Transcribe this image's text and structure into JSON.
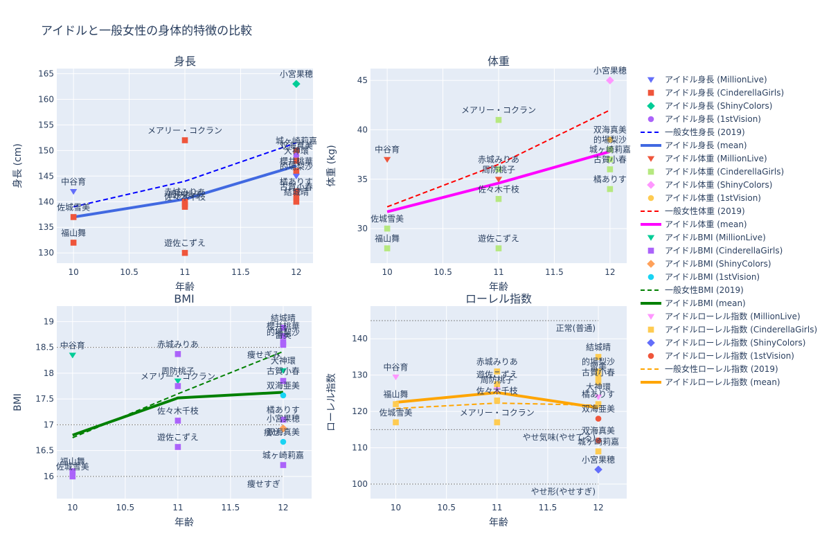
{
  "title": "アイドルと一般女性の身体的特徴の比較",
  "subplot_titles": [
    "身長",
    "体重",
    "BMI",
    "ローレル指数"
  ],
  "axis_titles": {
    "x": "年齢",
    "y": [
      "身長 (cm)",
      "体重 (kg)",
      "BMI",
      "ローレル指数"
    ]
  },
  "legend": [
    {
      "label": "アイドル身長 (MillionLive)",
      "kind": "marker",
      "symbol": "triangle-down",
      "color": "#636efa"
    },
    {
      "label": "アイドル身長 (CinderellaGirls)",
      "kind": "marker",
      "symbol": "square",
      "color": "#ef553b"
    },
    {
      "label": "アイドル身長 (ShinyColors)",
      "kind": "marker",
      "symbol": "diamond",
      "color": "#00cc96"
    },
    {
      "label": "アイドル身長 (1stVision)",
      "kind": "marker",
      "symbol": "circle",
      "color": "#ab63fa"
    },
    {
      "label": "一般女性身長 (2019)",
      "kind": "dash",
      "color": "#0000ff"
    },
    {
      "label": "アイドル身長 (mean)",
      "kind": "line",
      "color": "#4169e1"
    },
    {
      "label": "アイドル体重 (MillionLive)",
      "kind": "marker",
      "symbol": "triangle-down",
      "color": "#ef553b"
    },
    {
      "label": "アイドル体重 (CinderellaGirls)",
      "kind": "marker",
      "symbol": "square",
      "color": "#b6e880"
    },
    {
      "label": "アイドル体重 (ShinyColors)",
      "kind": "marker",
      "symbol": "diamond",
      "color": "#ff97ff"
    },
    {
      "label": "アイドル体重 (1stVision)",
      "kind": "marker",
      "symbol": "circle",
      "color": "#fecb52"
    },
    {
      "label": "一般女性体重 (2019)",
      "kind": "dash",
      "color": "#ff0000"
    },
    {
      "label": "アイドル体重 (mean)",
      "kind": "line",
      "color": "#ff00ff"
    },
    {
      "label": "アイドルBMI (MillionLive)",
      "kind": "marker",
      "symbol": "triangle-down",
      "color": "#00cc96"
    },
    {
      "label": "アイドルBMI (CinderellaGirls)",
      "kind": "marker",
      "symbol": "square",
      "color": "#ab63fa"
    },
    {
      "label": "アイドルBMI (ShinyColors)",
      "kind": "marker",
      "symbol": "diamond",
      "color": "#ffa15a"
    },
    {
      "label": "アイドルBMI (1stVision)",
      "kind": "marker",
      "symbol": "circle",
      "color": "#19d3f3"
    },
    {
      "label": "一般女性BMI (2019)",
      "kind": "dash",
      "color": "#008000"
    },
    {
      "label": "アイドルBMI (mean)",
      "kind": "line",
      "color": "#008000"
    },
    {
      "label": "アイドルローレル指数 (MillionLive)",
      "kind": "marker",
      "symbol": "triangle-down",
      "color": "#ff97ff"
    },
    {
      "label": "アイドルローレル指数 (CinderellaGirls)",
      "kind": "marker",
      "symbol": "square",
      "color": "#fecb52"
    },
    {
      "label": "アイドルローレル指数 (ShinyColors)",
      "kind": "marker",
      "symbol": "diamond",
      "color": "#636efa"
    },
    {
      "label": "アイドルローレル指数 (1stVision)",
      "kind": "marker",
      "symbol": "circle",
      "color": "#ef553b"
    },
    {
      "label": "一般女性ローレル指数 (2019)",
      "kind": "dash",
      "color": "#ffa500"
    },
    {
      "label": "アイドルローレル指数 (mean)",
      "kind": "line",
      "color": "#ffa500"
    }
  ],
  "chart_data": [
    {
      "type": "scatter",
      "title": "身長",
      "xlabel": "年齢",
      "ylabel": "身長 (cm)",
      "xlim": [
        9.85,
        12.15
      ],
      "ylim": [
        128,
        166
      ],
      "x_ticks": [
        10,
        10.5,
        11,
        11.5,
        12
      ],
      "y_ticks": [
        130,
        135,
        140,
        145,
        150,
        155,
        160,
        165
      ],
      "points": [
        {
          "x": 10,
          "y": 142,
          "group": "MillionLive",
          "symbol": "triangle-down",
          "color": "#636efa",
          "label": "中谷育"
        },
        {
          "x": 10,
          "y": 137,
          "group": "CinderellaGirls",
          "symbol": "square",
          "color": "#ef553b",
          "label": "佐城雪美"
        },
        {
          "x": 10,
          "y": 132,
          "group": "CinderellaGirls",
          "symbol": "square",
          "color": "#ef553b",
          "label": "福山舞"
        },
        {
          "x": 11,
          "y": 152,
          "group": "CinderellaGirls",
          "symbol": "square",
          "color": "#ef553b",
          "label": "メアリー・コクラン"
        },
        {
          "x": 11,
          "y": 140,
          "group": "CinderellaGirls",
          "symbol": "square",
          "color": "#ef553b",
          "label": "赤城みりあ"
        },
        {
          "x": 11,
          "y": 139.5,
          "group": "CinderellaGirls",
          "symbol": "square",
          "color": "#ef553b",
          "label": "周防桃子"
        },
        {
          "x": 11,
          "y": 139,
          "group": "CinderellaGirls",
          "symbol": "square",
          "color": "#ef553b",
          "label": "佐々木千枝"
        },
        {
          "x": 11,
          "y": 130,
          "group": "CinderellaGirls",
          "symbol": "square",
          "color": "#ef553b",
          "label": "遊佐こずえ"
        },
        {
          "x": 12,
          "y": 163,
          "group": "ShinyColors",
          "symbol": "diamond",
          "color": "#00cc96",
          "label": "小宮果穂"
        },
        {
          "x": 12,
          "y": 150,
          "group": "CinderellaGirls",
          "symbol": "square",
          "color": "#ef553b",
          "label": "城ヶ崎莉嘉"
        },
        {
          "x": 12,
          "y": 149,
          "group": "1stVision",
          "symbol": "circle",
          "color": "#ab63fa",
          "label": "双海真美"
        },
        {
          "x": 12,
          "y": 148,
          "group": "CinderellaGirls",
          "symbol": "square",
          "color": "#ef553b",
          "label": "大神環"
        },
        {
          "x": 12,
          "y": 146,
          "group": "CinderellaGirls",
          "symbol": "square",
          "color": "#ef553b",
          "label": "櫻井桃華"
        },
        {
          "x": 12,
          "y": 145,
          "group": "MillionLive",
          "symbol": "triangle-down",
          "color": "#636efa",
          "label": "的場梨沙"
        },
        {
          "x": 12,
          "y": 142,
          "group": "CinderellaGirls",
          "symbol": "square",
          "color": "#ef553b",
          "label": "橘ありす"
        },
        {
          "x": 12,
          "y": 141,
          "group": "CinderellaGirls",
          "symbol": "square",
          "color": "#ef553b",
          "label": "古賀小春"
        },
        {
          "x": 12,
          "y": 140,
          "group": "CinderellaGirls",
          "symbol": "square",
          "color": "#ef553b",
          "label": "結城晴"
        }
      ],
      "reference": {
        "name": "一般女性身長 (2019)",
        "x": [
          10,
          11,
          12
        ],
        "y": [
          139,
          144,
          151.5
        ]
      },
      "mean": {
        "name": "アイドル身長 (mean)",
        "x": [
          10,
          11,
          12
        ],
        "y": [
          137,
          140.5,
          147
        ]
      }
    },
    {
      "type": "scatter",
      "title": "体重",
      "xlabel": "年齢",
      "ylabel": "体重 (kg)",
      "xlim": [
        9.85,
        12.15
      ],
      "ylim": [
        26.5,
        46.2
      ],
      "x_ticks": [
        10,
        10.5,
        11,
        11.5,
        12
      ],
      "y_ticks": [
        30,
        35,
        40,
        45
      ],
      "points": [
        {
          "x": 10,
          "y": 37,
          "group": "MillionLive",
          "symbol": "triangle-down",
          "color": "#ef553b",
          "label": "中谷育"
        },
        {
          "x": 10,
          "y": 30,
          "group": "CinderellaGirls",
          "symbol": "square",
          "color": "#b6e880",
          "label": "佐城雪美"
        },
        {
          "x": 10,
          "y": 28,
          "group": "CinderellaGirls",
          "symbol": "square",
          "color": "#b6e880",
          "label": "福山舞"
        },
        {
          "x": 11,
          "y": 41,
          "group": "CinderellaGirls",
          "symbol": "square",
          "color": "#b6e880",
          "label": "メアリー・コクラン"
        },
        {
          "x": 11,
          "y": 36,
          "group": "CinderellaGirls",
          "symbol": "square",
          "color": "#b6e880",
          "label": "赤城みりあ"
        },
        {
          "x": 11,
          "y": 35,
          "group": "MillionLive",
          "symbol": "triangle-down",
          "color": "#ef553b",
          "label": "周防桃子"
        },
        {
          "x": 11,
          "y": 33,
          "group": "CinderellaGirls",
          "symbol": "square",
          "color": "#b6e880",
          "label": "佐々木千枝"
        },
        {
          "x": 11,
          "y": 28,
          "group": "CinderellaGirls",
          "symbol": "square",
          "color": "#b6e880",
          "label": "遊佐こずえ"
        },
        {
          "x": 12,
          "y": 45,
          "group": "ShinyColors",
          "symbol": "diamond",
          "color": "#ff97ff",
          "label": "小宮果穂"
        },
        {
          "x": 12,
          "y": 39,
          "group": "1stVision",
          "symbol": "circle",
          "color": "#fecb52",
          "label": "双海真美"
        },
        {
          "x": 12,
          "y": 38,
          "group": "CinderellaGirls",
          "symbol": "square",
          "color": "#b6e880",
          "label": "的場梨沙"
        },
        {
          "x": 12,
          "y": 37,
          "group": "CinderellaGirls",
          "symbol": "square",
          "color": "#b6e880",
          "label": "城ヶ崎莉嘉"
        },
        {
          "x": 12,
          "y": 36,
          "group": "CinderellaGirls",
          "symbol": "square",
          "color": "#b6e880",
          "label": "古賀小春"
        },
        {
          "x": 12,
          "y": 34,
          "group": "CinderellaGirls",
          "symbol": "square",
          "color": "#b6e880",
          "label": "橘ありす"
        }
      ],
      "reference": {
        "name": "一般女性体重 (2019)",
        "x": [
          10,
          11,
          12
        ],
        "y": [
          32.2,
          36.5,
          42
        ]
      },
      "mean": {
        "name": "アイドル体重 (mean)",
        "x": [
          10,
          11,
          12
        ],
        "y": [
          31.7,
          34.6,
          37.8
        ]
      }
    },
    {
      "type": "scatter",
      "title": "BMI",
      "xlabel": "年齢",
      "ylabel": "BMI",
      "xlim": [
        9.85,
        12.27
      ],
      "ylim": [
        15.57,
        19.3
      ],
      "x_ticks": [
        10,
        10.5,
        11,
        11.5,
        12
      ],
      "y_ticks": [
        16,
        16.5,
        17,
        17.5,
        18,
        18.5,
        19
      ],
      "points": [
        {
          "x": 10,
          "y": 18.35,
          "group": "MillionLive",
          "symbol": "triangle-down",
          "color": "#00cc96",
          "label": "中谷育"
        },
        {
          "x": 10,
          "y": 16.1,
          "group": "CinderellaGirls",
          "symbol": "square",
          "color": "#ab63fa",
          "label": "福山舞"
        },
        {
          "x": 10,
          "y": 16.0,
          "group": "CinderellaGirls",
          "symbol": "square",
          "color": "#ab63fa",
          "label": "佐城雪美"
        },
        {
          "x": 11,
          "y": 18.37,
          "group": "CinderellaGirls",
          "symbol": "square",
          "color": "#ab63fa",
          "label": "赤城みりあ"
        },
        {
          "x": 11,
          "y": 17.85,
          "group": "MillionLive",
          "symbol": "triangle-down",
          "color": "#00cc96",
          "label": "周防桃子"
        },
        {
          "x": 11,
          "y": 17.75,
          "group": "CinderellaGirls",
          "symbol": "square",
          "color": "#ab63fa",
          "label": "メアリー・コクラン"
        },
        {
          "x": 11,
          "y": 17.08,
          "group": "CinderellaGirls",
          "symbol": "square",
          "color": "#ab63fa",
          "label": "佐々木千枝"
        },
        {
          "x": 11,
          "y": 16.57,
          "group": "CinderellaGirls",
          "symbol": "square",
          "color": "#ab63fa",
          "label": "遊佐こずえ"
        },
        {
          "x": 12,
          "y": 18.88,
          "group": "CinderellaGirls",
          "symbol": "square",
          "color": "#ab63fa",
          "label": "結城晴"
        },
        {
          "x": 12,
          "y": 18.72,
          "group": "CinderellaGirls",
          "symbol": "square",
          "color": "#ab63fa",
          "label": "櫻井桃華"
        },
        {
          "x": 12,
          "y": 18.6,
          "group": "CinderellaGirls",
          "symbol": "square",
          "color": "#ab63fa",
          "label": "的場梨沙"
        },
        {
          "x": 12,
          "y": 18.55,
          "group": "CinderellaGirls",
          "symbol": "square",
          "color": "#ab63fa",
          "label": "留美"
        },
        {
          "x": 12,
          "y": 18.05,
          "group": "MillionLive",
          "symbol": "triangle-down",
          "color": "#00cc96",
          "label": "大神環"
        },
        {
          "x": 12,
          "y": 17.85,
          "group": "CinderellaGirls",
          "symbol": "square",
          "color": "#ab63fa",
          "label": "古賀小春"
        },
        {
          "x": 12,
          "y": 17.57,
          "group": "1stVision",
          "symbol": "circle",
          "color": "#19d3f3",
          "label": "双海亜美"
        },
        {
          "x": 12,
          "y": 17.1,
          "group": "CinderellaGirls",
          "symbol": "square",
          "color": "#ab63fa",
          "label": "橘ありす"
        },
        {
          "x": 12,
          "y": 16.93,
          "group": "ShinyColors",
          "symbol": "diamond",
          "color": "#ffa15a",
          "label": "小宮果穂"
        },
        {
          "x": 12,
          "y": 16.67,
          "group": "1stVision",
          "symbol": "circle",
          "color": "#19d3f3",
          "label": "双海真美"
        },
        {
          "x": 12,
          "y": 16.22,
          "group": "CinderellaGirls",
          "symbol": "square",
          "color": "#ab63fa",
          "label": "城ヶ崎莉嘉"
        }
      ],
      "thresholds": [
        {
          "y": 18.5,
          "label": "痩せぎみ"
        },
        {
          "y": 17.0,
          "label": "痩せ"
        },
        {
          "y": 16.0,
          "label": "痩せすぎ"
        }
      ],
      "reference": {
        "name": "一般女性BMI (2019)",
        "x": [
          10,
          11,
          12
        ],
        "y": [
          16.75,
          17.6,
          18.42
        ]
      },
      "mean": {
        "name": "アイドルBMI (mean)",
        "x": [
          10,
          11,
          12
        ],
        "y": [
          16.8,
          17.52,
          17.63
        ]
      }
    },
    {
      "type": "scatter",
      "title": "ローレル指数",
      "xlabel": "年齢",
      "ylabel": "ローレル指数",
      "xlim": [
        9.75,
        12.28
      ],
      "ylim": [
        96,
        149
      ],
      "x_ticks": [
        10,
        10.5,
        11,
        11.5,
        12
      ],
      "y_ticks": [
        100,
        110,
        120,
        130,
        140
      ],
      "points": [
        {
          "x": 10,
          "y": 129.5,
          "group": "MillionLive",
          "symbol": "triangle-down",
          "color": "#ff97ff",
          "label": "中谷育"
        },
        {
          "x": 10,
          "y": 122,
          "group": "CinderellaGirls",
          "symbol": "square",
          "color": "#fecb52",
          "label": "福山舞"
        },
        {
          "x": 10,
          "y": 117,
          "group": "CinderellaGirls",
          "symbol": "square",
          "color": "#fecb52",
          "label": "佐城雪美"
        },
        {
          "x": 11,
          "y": 131,
          "group": "CinderellaGirls",
          "symbol": "square",
          "color": "#fecb52",
          "label": "赤城みりあ"
        },
        {
          "x": 11,
          "y": 127.5,
          "group": "CinderellaGirls",
          "symbol": "square",
          "color": "#fecb52",
          "label": "遊佐こずえ"
        },
        {
          "x": 11,
          "y": 126,
          "group": "MillionLive",
          "symbol": "triangle-down",
          "color": "#ff97ff",
          "label": "周防桃子"
        },
        {
          "x": 11,
          "y": 123,
          "group": "CinderellaGirls",
          "symbol": "square",
          "color": "#fecb52",
          "label": "佐々木千枝"
        },
        {
          "x": 11,
          "y": 117,
          "group": "CinderellaGirls",
          "symbol": "square",
          "color": "#fecb52",
          "label": "メアリー・コクラン"
        },
        {
          "x": 12,
          "y": 135,
          "group": "CinderellaGirls",
          "symbol": "square",
          "color": "#fecb52",
          "label": "結城晴"
        },
        {
          "x": 12,
          "y": 131,
          "group": "CinderellaGirls",
          "symbol": "square",
          "color": "#fecb52",
          "label": "的場梨沙"
        },
        {
          "x": 12,
          "y": 129.5,
          "group": "CinderellaGirls",
          "symbol": "square",
          "color": "#fecb52",
          "label": "留美"
        },
        {
          "x": 12,
          "y": 128,
          "group": "CinderellaGirls",
          "symbol": "square",
          "color": "#fecb52",
          "label": "古賀小春"
        },
        {
          "x": 12,
          "y": 124,
          "group": "MillionLive",
          "symbol": "triangle-down",
          "color": "#ff97ff",
          "label": "大神環"
        },
        {
          "x": 12,
          "y": 122,
          "group": "CinderellaGirls",
          "symbol": "square",
          "color": "#fecb52",
          "label": "橘ありす"
        },
        {
          "x": 12,
          "y": 118,
          "group": "1stVision",
          "symbol": "circle",
          "color": "#ef553b",
          "label": "双海亜美"
        },
        {
          "x": 12,
          "y": 112,
          "group": "1stVision",
          "symbol": "circle",
          "color": "#ef553b",
          "label": "双海真美"
        },
        {
          "x": 12,
          "y": 109,
          "group": "CinderellaGirls",
          "symbol": "square",
          "color": "#fecb52",
          "label": "城ヶ崎莉嘉"
        },
        {
          "x": 12,
          "y": 104,
          "group": "ShinyColors",
          "symbol": "diamond",
          "color": "#636efa",
          "label": "小宮果穂"
        }
      ],
      "thresholds": [
        {
          "y": 145,
          "label": "正常(普通)"
        },
        {
          "y": 115,
          "label": "やせ気味(やせてる)"
        },
        {
          "y": 100,
          "label": "やせ形(やせすぎ)"
        }
      ],
      "reference": {
        "name": "一般女性ローレル指数 (2019)",
        "x": [
          10,
          11,
          12
        ],
        "y": [
          120.8,
          122.3,
          121.7
        ]
      },
      "mean": {
        "name": "アイドルローレル指数 (mean)",
        "x": [
          10,
          11,
          12
        ],
        "y": [
          122.5,
          125.2,
          121
        ]
      }
    }
  ]
}
